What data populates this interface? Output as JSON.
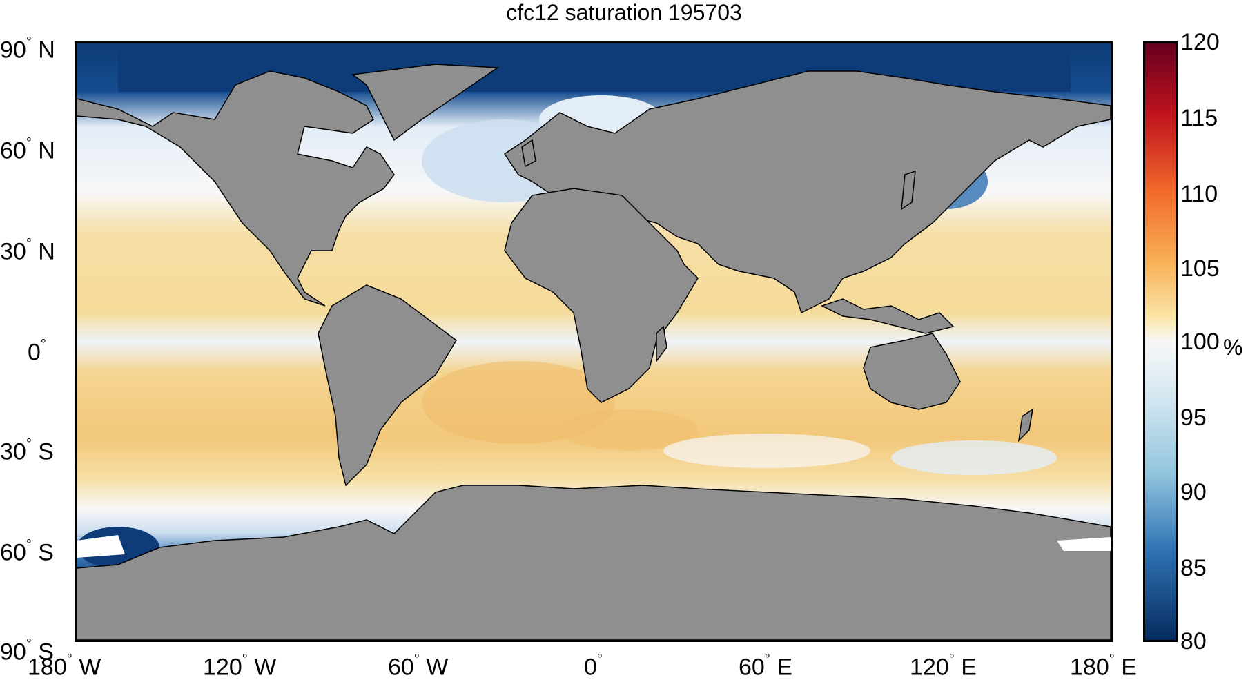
{
  "title": "cfc12 saturation 195703",
  "axes": {
    "y_ticks": [
      {
        "value": "90",
        "hemi": "N"
      },
      {
        "value": "60",
        "hemi": "N"
      },
      {
        "value": "30",
        "hemi": "N"
      },
      {
        "value": "0",
        "hemi": ""
      },
      {
        "value": "30",
        "hemi": "S"
      },
      {
        "value": "60",
        "hemi": "S"
      },
      {
        "value": "90",
        "hemi": "S"
      }
    ],
    "x_ticks": [
      {
        "value": "180",
        "hemi": "W"
      },
      {
        "value": "120",
        "hemi": "W"
      },
      {
        "value": "60",
        "hemi": "W"
      },
      {
        "value": "0",
        "hemi": ""
      },
      {
        "value": "60",
        "hemi": "E"
      },
      {
        "value": "120",
        "hemi": "E"
      },
      {
        "value": "180",
        "hemi": "E"
      }
    ]
  },
  "colorbar": {
    "ticks": [
      "120",
      "115",
      "110",
      "105",
      "100",
      "95",
      "90",
      "85",
      "80"
    ],
    "unit": "%",
    "range": [
      80,
      120
    ]
  },
  "colors": {
    "land": "#8f8f8f",
    "ocean_warm": "#f6dc9a",
    "ocean_warmer": "#f2c77a",
    "ocean_neutral": "#f7f7f7",
    "ocean_light_blue": "#cddff0",
    "ocean_mid_blue": "#7fb0d8",
    "ocean_dark_blue": "#0d3c78",
    "ice": "#ffffff"
  },
  "degree_symbol": "°"
}
